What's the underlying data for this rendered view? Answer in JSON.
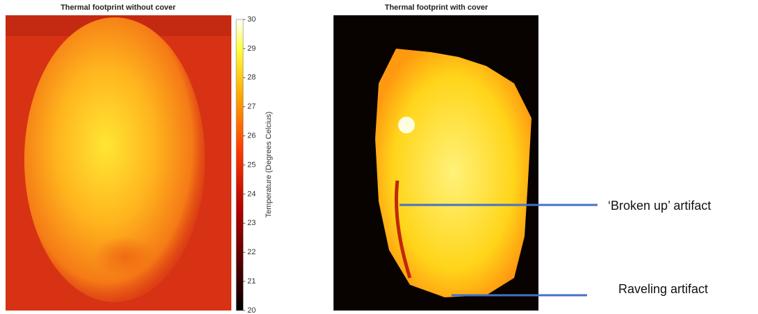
{
  "left_panel": {
    "title": "Thermal footprint without cover"
  },
  "right_panel": {
    "title": "Thermal footprint with cover"
  },
  "colorbar": {
    "label": "Temperature (Degrees Celcius)",
    "lim": [
      20,
      30
    ],
    "ticks": [
      20,
      21,
      22,
      23,
      24,
      25,
      26,
      27,
      28,
      29,
      30
    ]
  },
  "annotations": [
    {
      "text": "‘Broken up’ artifact"
    },
    {
      "text": "Raveling artifact"
    }
  ]
}
